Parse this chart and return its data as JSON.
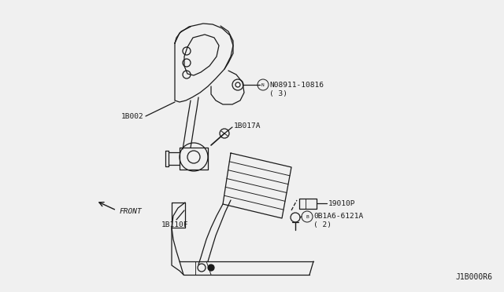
{
  "bg_color": "#f0f0f0",
  "line_color": "#1a1a1a",
  "text_color": "#1a1a1a",
  "diagram_id": "J1B000R6",
  "labels": {
    "part1_id": "1B002",
    "part2_id": "N08911-10816",
    "part2_sub": "( 3)",
    "part3_id": "1B017A",
    "part4_id": "19010P",
    "part5_id": "0B1A6-6121A",
    "part5_sub": "( 2)",
    "part6_id": "1B110F",
    "front_label": "FRONT"
  }
}
